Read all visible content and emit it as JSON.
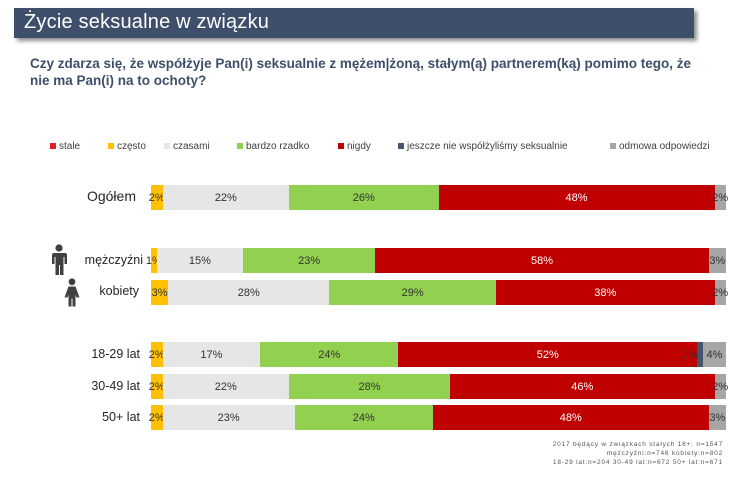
{
  "header": {
    "title": "Życie seksualne w związku",
    "question": "Czy zdarza się, że współżyje Pan(i) seksualnie z mężem|żoną, stałym(ą) partnerem(ką) pomimo tego, że nie ma Pan(i) na to ochoty?"
  },
  "colors": {
    "banner": "#3e4f6b",
    "stale": "#e31e24",
    "czesto": "#ffc000",
    "czasami": "#e6e6e6",
    "bardzo_rzadko": "#92d050",
    "nigdy": "#c00000",
    "jeszcze": "#44546a",
    "odmowa": "#a6a6a6"
  },
  "chart_data": {
    "type": "bar",
    "orientation": "horizontal-stacked-100",
    "series_names": [
      "stale",
      "często",
      "czasami",
      "bardzo rzadko",
      "nigdy",
      "jeszcze nie współżyliśmy seksualnie",
      "odmowa odpowiedzi"
    ],
    "legend": [
      {
        "label": "stale",
        "color": "#e31e24"
      },
      {
        "label": "często",
        "color": "#ffc000"
      },
      {
        "label": "czasami",
        "color": "#e6e6e6"
      },
      {
        "label": "bardzo rzadko",
        "color": "#92d050"
      },
      {
        "label": "nigdy",
        "color": "#c00000"
      },
      {
        "label": "jeszcze nie współżyliśmy seksualnie",
        "color": "#44546a"
      },
      {
        "label": "odmowa odpowiedzi",
        "color": "#a6a6a6"
      }
    ],
    "rows": [
      {
        "label": "Ogółem",
        "values": [
          0,
          2,
          22,
          26,
          48,
          0,
          2
        ],
        "labels": [
          "",
          "2%",
          "22%",
          "26%",
          "48%",
          "",
          "2%"
        ]
      },
      {
        "label": "mężczyźni",
        "values": [
          0,
          1,
          15,
          23,
          58,
          0,
          3
        ],
        "labels": [
          "",
          "1%",
          "15%",
          "23%",
          "58%",
          "",
          "3%"
        ]
      },
      {
        "label": "kobiety",
        "values": [
          0,
          3,
          28,
          29,
          38,
          0,
          2
        ],
        "labels": [
          "",
          "3%",
          "28%",
          "29%",
          "38%",
          "",
          "2%"
        ]
      },
      {
        "label": "18-29 lat",
        "values": [
          0,
          2,
          17,
          24,
          52,
          1,
          4
        ],
        "labels": [
          "",
          "2%",
          "17%",
          "24%",
          "52%",
          "1%",
          "4%"
        ]
      },
      {
        "label": "30-49 lat",
        "values": [
          0,
          2,
          22,
          28,
          46,
          0,
          2
        ],
        "labels": [
          "",
          "2%",
          "22%",
          "28%",
          "46%",
          "",
          "2%"
        ]
      },
      {
        "label": "50+ lat",
        "values": [
          0,
          2,
          23,
          24,
          48,
          0,
          3
        ],
        "labels": [
          "",
          "2%",
          "23%",
          "24%",
          "48%",
          "",
          "3%"
        ]
      }
    ]
  },
  "footnote": {
    "line1": "2017 będący w związkach stałych 18+: n=1547",
    "line2": "mężczyźni:n=746 kobiety:n=802",
    "line3": "18-29 lat:n=204 30-49 lat:n=672 50+ lat:n=671"
  }
}
